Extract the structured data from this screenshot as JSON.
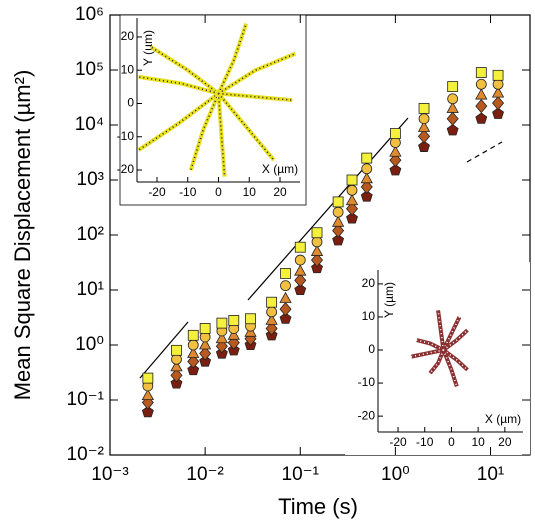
{
  "chart_data": [
    {
      "type": "scatter",
      "xlabel": "Time (s)",
      "ylabel": "Mean Square Displacement (µm²)",
      "xscale": "log",
      "yscale": "log",
      "xlim": [
        0.001,
        26
      ],
      "ylim": [
        0.01,
        1000000
      ],
      "xticks": [
        {
          "value": 0.001,
          "label": "10⁻³"
        },
        {
          "value": 0.01,
          "label": "10⁻²"
        },
        {
          "value": 0.1,
          "label": "10⁻¹"
        },
        {
          "value": 1,
          "label": "10⁰"
        },
        {
          "value": 10,
          "label": "10¹"
        }
      ],
      "yticks": [
        {
          "value": 0.01,
          "label": "10⁻²"
        },
        {
          "value": 0.1,
          "label": "10⁻¹"
        },
        {
          "value": 1,
          "label": "10⁰"
        },
        {
          "value": 10,
          "label": "10¹"
        },
        {
          "value": 100,
          "label": "10²"
        },
        {
          "value": 1000,
          "label": "10³"
        },
        {
          "value": 10000,
          "label": "10⁴"
        },
        {
          "value": 100000,
          "label": "10⁵"
        },
        {
          "value": 1000000,
          "label": "10⁶"
        }
      ],
      "x": [
        0.0025,
        0.005,
        0.0075,
        0.01,
        0.015,
        0.02,
        0.03,
        0.05,
        0.07,
        0.1,
        0.15,
        0.25,
        0.35,
        0.5,
        1,
        2,
        4,
        8,
        12
      ],
      "series": [
        {
          "color": "#f5f03c",
          "marker": "square",
          "values": [
            0.25,
            0.8,
            1.5,
            2,
            2.5,
            2.8,
            3,
            6,
            20,
            60,
            110,
            400,
            1000,
            2500,
            7000,
            20000,
            50000,
            90000,
            80000
          ]
        },
        {
          "color": "#f2c040",
          "marker": "circle",
          "values": [
            0.18,
            0.55,
            1.0,
            1.4,
            1.8,
            2.0,
            2.2,
            4,
            12,
            35,
            75,
            260,
            650,
            1600,
            4800,
            13000,
            30000,
            55000,
            55000
          ]
        },
        {
          "color": "#e08a30",
          "marker": "triangle",
          "values": [
            0.12,
            0.4,
            0.7,
            1.0,
            1.3,
            1.5,
            1.7,
            2.8,
            7,
            22,
            50,
            170,
            420,
            1050,
            3200,
            9000,
            20000,
            35000,
            38000
          ]
        },
        {
          "color": "#b85a20",
          "marker": "diamond",
          "values": [
            0.09,
            0.28,
            0.5,
            0.7,
            0.95,
            1.1,
            1.3,
            2.0,
            4.5,
            15,
            35,
            120,
            300,
            750,
            2300,
            6200,
            13000,
            22000,
            25000
          ]
        },
        {
          "color": "#7a1f10",
          "marker": "pentagon",
          "values": [
            0.06,
            0.2,
            0.35,
            0.5,
            0.7,
            0.8,
            1,
            1.5,
            3,
            10,
            25,
            80,
            200,
            500,
            1500,
            4000,
            8000,
            13000,
            16000
          ]
        }
      ]
    },
    {
      "type": "line",
      "xlabel": "X (µm)",
      "ylabel": "Y (µm)",
      "xlim": [
        -26.5,
        26.5
      ],
      "ylim": [
        -23.6,
        25.7
      ],
      "xticks": [
        -20,
        -10,
        0,
        10,
        20
      ],
      "yticks": [
        -20,
        -10,
        0,
        10,
        20
      ],
      "color": "#e8e020",
      "series": [
        {
          "x": [
            0,
            -10,
            -22
          ],
          "y": [
            3,
            10,
            17
          ]
        },
        {
          "x": [
            0,
            -12,
            -26
          ],
          "y": [
            3,
            6,
            8
          ]
        },
        {
          "x": [
            0,
            5,
            9
          ],
          "y": [
            3,
            13,
            24
          ]
        },
        {
          "x": [
            0,
            12,
            25
          ],
          "y": [
            3,
            10,
            15
          ]
        },
        {
          "x": [
            0,
            12,
            24
          ],
          "y": [
            3,
            2,
            1
          ]
        },
        {
          "x": [
            0,
            -13,
            -26
          ],
          "y": [
            3,
            -6,
            -14
          ]
        },
        {
          "x": [
            0,
            -5,
            -9
          ],
          "y": [
            3,
            -8,
            -20
          ]
        },
        {
          "x": [
            0,
            1,
            2
          ],
          "y": [
            3,
            -10,
            -22
          ]
        },
        {
          "x": [
            0,
            9,
            18
          ],
          "y": [
            3,
            -7,
            -17
          ]
        }
      ]
    },
    {
      "type": "line",
      "xlabel": "X (µm)",
      "ylabel": "Y (µm)",
      "xlim": [
        -27.5,
        26.8
      ],
      "ylim": [
        -24.8,
        24.2
      ],
      "xticks": [
        -20,
        -10,
        0,
        10,
        20
      ],
      "yticks": [
        -20,
        -10,
        0,
        10,
        20
      ],
      "color": "#8a3030",
      "series": [
        {
          "x": [
            -3,
            -8,
            -13
          ],
          "y": [
            0,
            2,
            3
          ]
        },
        {
          "x": [
            -3,
            -4,
            -5
          ],
          "y": [
            0,
            6,
            12
          ]
        },
        {
          "x": [
            -3,
            0,
            3
          ],
          "y": [
            0,
            5,
            10
          ]
        },
        {
          "x": [
            -3,
            2,
            6
          ],
          "y": [
            0,
            3,
            6
          ]
        },
        {
          "x": [
            -3,
            2,
            6
          ],
          "y": [
            0,
            -3,
            -6
          ]
        },
        {
          "x": [
            -3,
            0,
            2
          ],
          "y": [
            0,
            -6,
            -11
          ]
        },
        {
          "x": [
            -3,
            -5,
            -8
          ],
          "y": [
            0,
            -4,
            -7
          ]
        },
        {
          "x": [
            -3,
            -9,
            -15
          ],
          "y": [
            0,
            -1,
            -2
          ]
        }
      ]
    }
  ]
}
